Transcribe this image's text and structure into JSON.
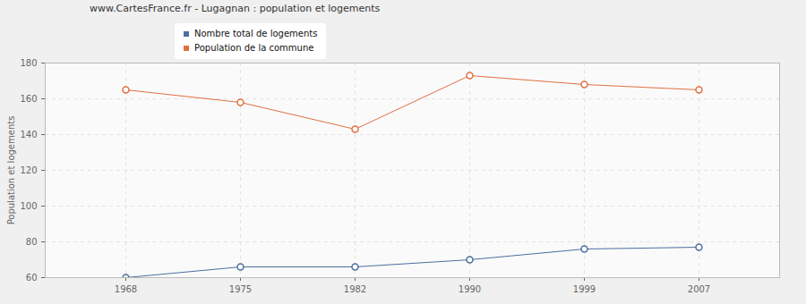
{
  "chart_data": {
    "type": "line",
    "title": "www.CartesFrance.fr - Lugagnan : population et logements",
    "y_label": "Population et logements",
    "categories": [
      "1968",
      "1975",
      "1982",
      "1990",
      "1999",
      "2007"
    ],
    "series": [
      {
        "name": "Nombre total de logements",
        "color": "#4a6f9e",
        "values": [
          60,
          66,
          66,
          70,
          76,
          77
        ]
      },
      {
        "name": "Population de la commune",
        "color": "#e07040",
        "values": [
          165,
          158,
          143,
          173,
          168,
          165
        ]
      }
    ],
    "ylim": [
      60,
      180
    ],
    "yticks": [
      60,
      80,
      100,
      120,
      140,
      160,
      180
    ],
    "grid": true,
    "legend": "top",
    "marker": "circle"
  }
}
